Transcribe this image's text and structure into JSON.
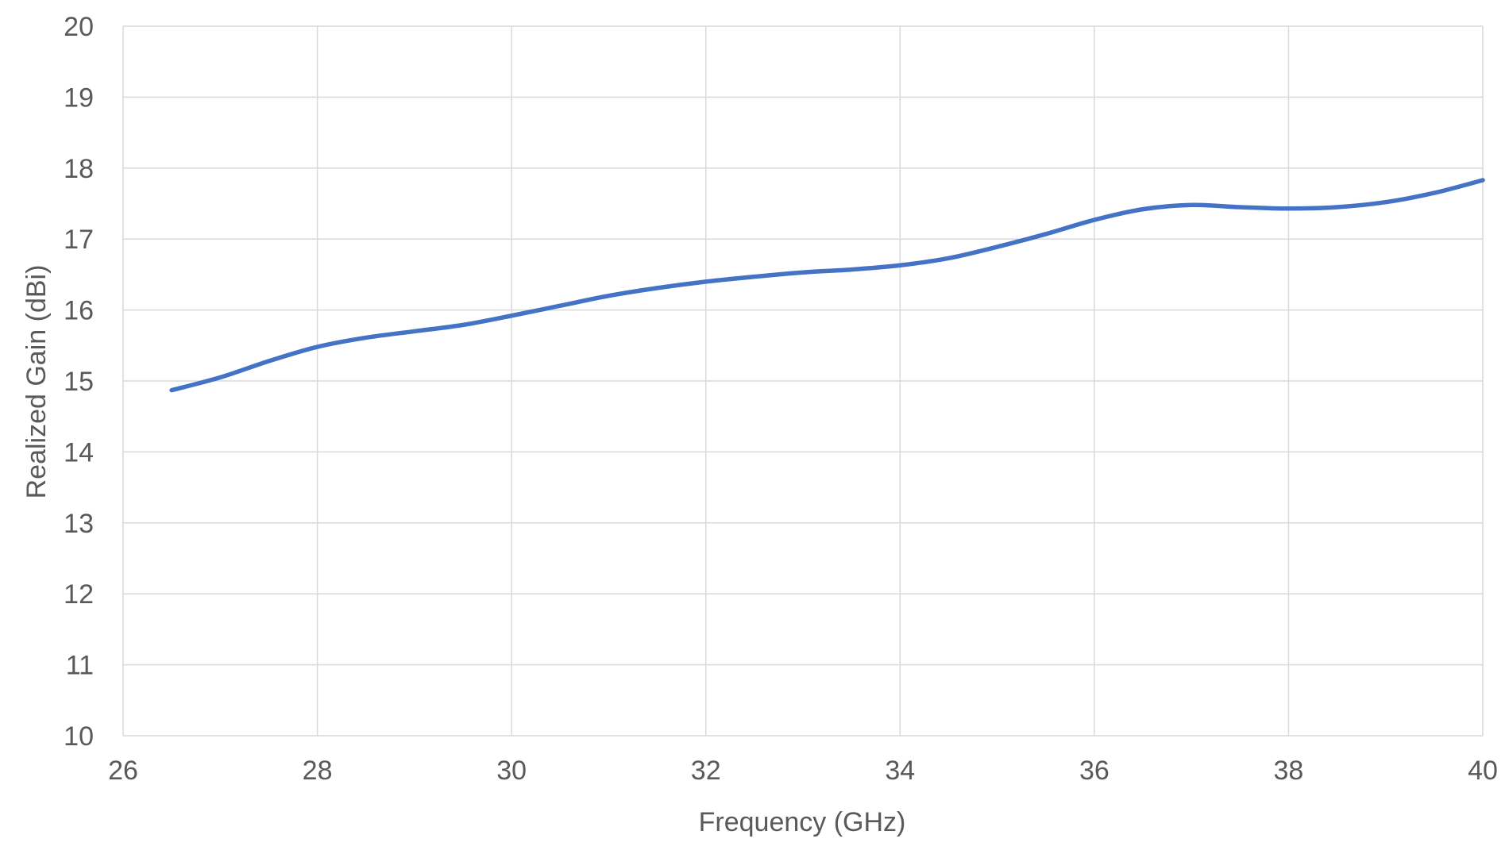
{
  "chart_data": {
    "type": "line",
    "title": "",
    "xlabel": "Frequency (GHz)",
    "ylabel": "Realized Gain (dBi)",
    "xlim": [
      26,
      40
    ],
    "ylim": [
      10,
      20
    ],
    "x_ticks": [
      26,
      28,
      30,
      32,
      34,
      36,
      38,
      40
    ],
    "y_ticks": [
      10,
      11,
      12,
      13,
      14,
      15,
      16,
      17,
      18,
      19,
      20
    ],
    "x_tick_labels": [
      "26",
      "28",
      "30",
      "32",
      "34",
      "36",
      "38",
      "40"
    ],
    "y_tick_labels": [
      "10",
      "11",
      "12",
      "13",
      "14",
      "15",
      "16",
      "17",
      "18",
      "19",
      "20"
    ],
    "grid": true,
    "legend": "none",
    "series": [
      {
        "color": "#4472C4",
        "x": [
          26.5,
          27,
          27.5,
          28,
          28.5,
          29,
          29.5,
          30,
          30.5,
          31,
          31.5,
          32,
          32.5,
          33,
          33.5,
          34,
          34.5,
          35,
          35.5,
          36,
          36.5,
          37,
          37.5,
          38,
          38.5,
          39,
          39.5,
          40
        ],
        "y": [
          14.87,
          15.05,
          15.28,
          15.48,
          15.61,
          15.7,
          15.79,
          15.92,
          16.06,
          16.2,
          16.31,
          16.4,
          16.47,
          16.53,
          16.57,
          16.63,
          16.73,
          16.89,
          17.07,
          17.27,
          17.42,
          17.48,
          17.45,
          17.43,
          17.45,
          17.52,
          17.65,
          17.83
        ]
      }
    ]
  }
}
